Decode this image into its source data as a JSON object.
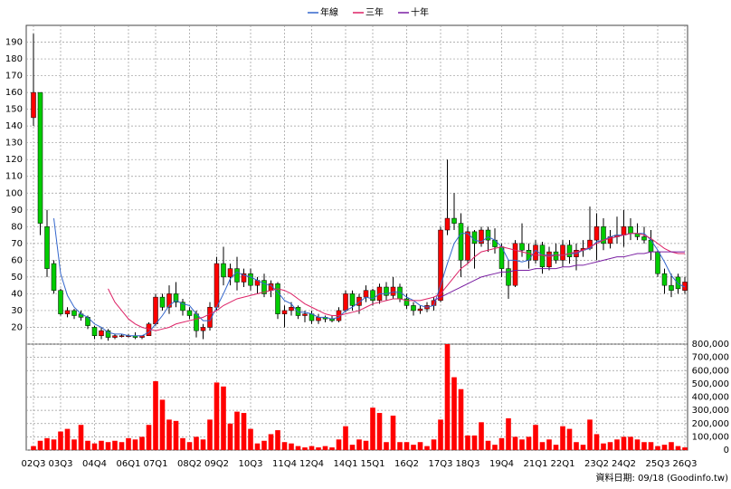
{
  "chart_data": [
    {
      "type": "candlestick",
      "categories": [
        "02Q3",
        null,
        null,
        null,
        "03Q3",
        null,
        null,
        null,
        null,
        "04Q4",
        null,
        null,
        null,
        null,
        "06Q1",
        null,
        null,
        null,
        "07Q1",
        null,
        null,
        null,
        null,
        "08Q2",
        null,
        null,
        null,
        "09Q2",
        null,
        null,
        null,
        null,
        "10Q3",
        null,
        null,
        null,
        null,
        "11Q4",
        null,
        null,
        null,
        "12Q4",
        null,
        null,
        null,
        null,
        "14Q1",
        null,
        null,
        null,
        "15Q1",
        null,
        null,
        null,
        null,
        "16Q2",
        null,
        null,
        null,
        null,
        "17Q3",
        null,
        null,
        null,
        "18Q3",
        null,
        null,
        null,
        null,
        "19Q4",
        null,
        null,
        null,
        null,
        "21Q1",
        null,
        null,
        null,
        "22Q1",
        null,
        null,
        null,
        null,
        "23Q2",
        null,
        null,
        null,
        "24Q2",
        null,
        null,
        null,
        null,
        "25Q3",
        null,
        null,
        null,
        "26Q3"
      ],
      "open": [
        145,
        160,
        80,
        58,
        42,
        28,
        30,
        28,
        26,
        20,
        15,
        18,
        14,
        15,
        15,
        15,
        14,
        15,
        22,
        38,
        32,
        40,
        35,
        30,
        28,
        18,
        20,
        32,
        58,
        50,
        55,
        47,
        52,
        45,
        48,
        42,
        46,
        28,
        30,
        32,
        27,
        28,
        24,
        26,
        25,
        24,
        30,
        40,
        33,
        38,
        42,
        36,
        44,
        39,
        44,
        37,
        33,
        30,
        31,
        33,
        36,
        78,
        85,
        82,
        60,
        77,
        70,
        78,
        72,
        68,
        55,
        45,
        70,
        66,
        60,
        69,
        56,
        65,
        60,
        69,
        62,
        66,
        67,
        72,
        80,
        70,
        74,
        75,
        80,
        76,
        74,
        72,
        65,
        52,
        45,
        50,
        42
      ],
      "high": [
        195,
        160,
        90,
        60,
        43,
        32,
        31,
        30,
        27,
        21,
        20,
        19,
        16,
        16,
        16,
        17,
        15,
        23,
        40,
        40,
        45,
        47,
        37,
        32,
        30,
        22,
        35,
        62,
        68,
        58,
        62,
        55,
        55,
        50,
        52,
        48,
        47,
        33,
        35,
        33,
        30,
        30,
        28,
        27,
        27,
        32,
        42,
        42,
        40,
        45,
        43,
        46,
        47,
        50,
        46,
        40,
        35,
        33,
        35,
        38,
        80,
        120,
        100,
        88,
        80,
        78,
        80,
        80,
        79,
        70,
        60,
        72,
        82,
        70,
        72,
        71,
        68,
        70,
        72,
        72,
        70,
        72,
        92,
        88,
        85,
        78,
        86,
        90,
        85,
        82,
        80,
        78,
        66,
        55,
        52,
        52,
        50
      ],
      "low": [
        140,
        75,
        50,
        40,
        27,
        26,
        25,
        24,
        19,
        13,
        13,
        12,
        13,
        14,
        14,
        13,
        13,
        15,
        21,
        30,
        28,
        32,
        27,
        25,
        14,
        13,
        18,
        30,
        45,
        45,
        42,
        44,
        42,
        40,
        38,
        38,
        25,
        20,
        27,
        25,
        23,
        22,
        22,
        23,
        23,
        23,
        29,
        30,
        28,
        35,
        33,
        34,
        36,
        37,
        35,
        31,
        27,
        28,
        29,
        30,
        35,
        75,
        78,
        50,
        58,
        55,
        68,
        65,
        64,
        50,
        37,
        44,
        62,
        55,
        58,
        52,
        54,
        58,
        56,
        58,
        54,
        62,
        66,
        60,
        66,
        67,
        70,
        68,
        72,
        72,
        70,
        60,
        50,
        40,
        38,
        40,
        40
      ],
      "close": [
        160,
        82,
        55,
        42,
        28,
        30,
        27,
        26,
        21,
        15,
        18,
        14,
        15,
        15,
        15,
        14,
        15,
        22,
        38,
        32,
        40,
        35,
        30,
        27,
        18,
        20,
        32,
        58,
        50,
        55,
        47,
        52,
        45,
        48,
        40,
        46,
        28,
        30,
        32,
        27,
        28,
        24,
        26,
        25,
        24,
        30,
        40,
        33,
        38,
        42,
        36,
        44,
        39,
        44,
        37,
        33,
        30,
        31,
        33,
        36,
        78,
        85,
        82,
        60,
        77,
        70,
        78,
        72,
        68,
        55,
        45,
        70,
        66,
        60,
        69,
        56,
        65,
        60,
        69,
        62,
        66,
        67,
        72,
        80,
        70,
        74,
        75,
        80,
        76,
        74,
        72,
        65,
        52,
        45,
        42,
        43,
        47
      ],
      "up_color": "#ff0000",
      "down_color": "#00cc00",
      "series": [
        {
          "name": "年線",
          "color": "#3366cc",
          "values": [
            null,
            null,
            null,
            85,
            52,
            39,
            32,
            28,
            26,
            22,
            20,
            17,
            16,
            16,
            15,
            15,
            15,
            17,
            22,
            27,
            33,
            36,
            34,
            33,
            28,
            24,
            24,
            32,
            40,
            49,
            53,
            51,
            50,
            48,
            46,
            45,
            41,
            36,
            34,
            29,
            29,
            28,
            26,
            26,
            25,
            26,
            30,
            32,
            35,
            38,
            37,
            40,
            40,
            41,
            41,
            38,
            36,
            33,
            32,
            33,
            45,
            58,
            70,
            76,
            76,
            72,
            71,
            74,
            72,
            68,
            60,
            60,
            59,
            60,
            66,
            63,
            63,
            63,
            63,
            64,
            64,
            66,
            67,
            71,
            72,
            74,
            75,
            75,
            76,
            76,
            76,
            72,
            66,
            59,
            51,
            46,
            44
          ]
        },
        {
          "name": "三年",
          "color": "#dd2266",
          "values": [
            null,
            null,
            null,
            null,
            null,
            null,
            null,
            null,
            null,
            null,
            null,
            43,
            35,
            30,
            25,
            22,
            20,
            19,
            18,
            19,
            20,
            22,
            23,
            24,
            25,
            26,
            28,
            30,
            33,
            35,
            37,
            38,
            39,
            40,
            41,
            42,
            43,
            42,
            40,
            37,
            34,
            32,
            30,
            28,
            27,
            27,
            28,
            29,
            30,
            32,
            34,
            35,
            36,
            37,
            37,
            36,
            36,
            36,
            37,
            38,
            40,
            45,
            50,
            55,
            58,
            62,
            65,
            66,
            67,
            68,
            67,
            66,
            65,
            64,
            63,
            63,
            62,
            63,
            63,
            64,
            65,
            66,
            68,
            70,
            72,
            73,
            74,
            75,
            76,
            76,
            75,
            73,
            70,
            67,
            65,
            64,
            64
          ]
        },
        {
          "name": "十年",
          "color": "#7a1fa2",
          "values": [
            null,
            null,
            null,
            null,
            null,
            null,
            null,
            null,
            null,
            null,
            null,
            null,
            null,
            null,
            null,
            null,
            null,
            null,
            null,
            null,
            null,
            null,
            null,
            null,
            null,
            null,
            null,
            null,
            null,
            null,
            null,
            null,
            null,
            null,
            null,
            null,
            null,
            null,
            null,
            null,
            null,
            null,
            null,
            null,
            null,
            null,
            null,
            null,
            null,
            null,
            null,
            null,
            null,
            null,
            null,
            null,
            null,
            null,
            null,
            36,
            38,
            40,
            42,
            44,
            46,
            48,
            50,
            51,
            52,
            53,
            53,
            54,
            54,
            54,
            55,
            55,
            55,
            55,
            56,
            56,
            57,
            57,
            58,
            59,
            60,
            61,
            62,
            62,
            63,
            64,
            64,
            65,
            65,
            65,
            65,
            65,
            65
          ]
        }
      ],
      "ylim": [
        10,
        200
      ],
      "yticks": [
        20,
        30,
        40,
        50,
        60,
        70,
        80,
        90,
        100,
        110,
        120,
        130,
        140,
        150,
        160,
        170,
        180,
        190
      ],
      "grid": true,
      "legend": "top"
    },
    {
      "type": "bar",
      "color": "#ff0000",
      "axis_side": "right",
      "values": [
        30000,
        70000,
        90000,
        80000,
        140000,
        160000,
        80000,
        190000,
        70000,
        50000,
        70000,
        60000,
        70000,
        60000,
        90000,
        80000,
        100000,
        190000,
        520000,
        380000,
        230000,
        220000,
        90000,
        60000,
        100000,
        80000,
        230000,
        510000,
        480000,
        200000,
        290000,
        280000,
        160000,
        50000,
        70000,
        120000,
        150000,
        60000,
        50000,
        30000,
        20000,
        30000,
        20000,
        30000,
        20000,
        80000,
        180000,
        40000,
        80000,
        70000,
        320000,
        280000,
        60000,
        260000,
        60000,
        60000,
        40000,
        60000,
        30000,
        80000,
        230000,
        800000,
        550000,
        460000,
        110000,
        110000,
        210000,
        70000,
        40000,
        90000,
        240000,
        100000,
        80000,
        100000,
        190000,
        60000,
        80000,
        40000,
        180000,
        160000,
        60000,
        40000,
        230000,
        120000,
        50000,
        60000,
        80000,
        100000,
        100000,
        80000,
        60000,
        60000,
        30000,
        40000,
        60000,
        30000,
        20000
      ],
      "ylim": [
        0,
        800000
      ],
      "yticks": [
        0,
        {
          "value": 100000,
          "label": "100,000"
        },
        {
          "value": 200000,
          "label": "200,000"
        },
        {
          "value": 300000,
          "label": "300,000"
        },
        {
          "value": 400000,
          "label": "400,000"
        },
        {
          "value": 500000,
          "label": "500,000"
        },
        {
          "value": 600000,
          "label": "600,000"
        },
        {
          "value": 700000,
          "label": "700,000"
        },
        {
          "value": 800000,
          "label": "800,000"
        }
      ],
      "grid": true
    }
  ],
  "note": "資料日期: 09/18  (Goodinfo.tw)"
}
